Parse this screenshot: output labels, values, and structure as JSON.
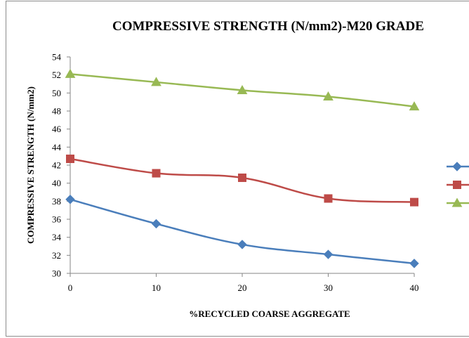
{
  "chart_data": {
    "type": "line",
    "title": "COMPRESSIVE  STRENGTH  (N/mm2)-M20 GRADE",
    "xlabel": "%RECYCLED COARSE AGGREGATE",
    "ylabel": "COMPRESSIVE STRENGTH (N/mm2)",
    "x": [
      0,
      10,
      20,
      30,
      40
    ],
    "ylim": [
      30,
      54
    ],
    "yticks": [
      "30",
      "32",
      "34",
      "36",
      "38",
      "40",
      "42",
      "44",
      "46",
      "48",
      "50",
      "52",
      "54"
    ],
    "xticks": [
      "0",
      "10",
      "20",
      "30",
      "40"
    ],
    "grid": false,
    "legend_position": "right",
    "series": [
      {
        "values": [
          38.2,
          35.5,
          33.2,
          32.1,
          31.1
        ],
        "color": "#4a7ebb",
        "marker": "diamond"
      },
      {
        "values": [
          42.7,
          41.1,
          40.6,
          38.3,
          37.9
        ],
        "color": "#be4b48",
        "marker": "square"
      },
      {
        "values": [
          52.1,
          51.2,
          50.3,
          49.6,
          48.5
        ],
        "color": "#98b954",
        "marker": "triangle"
      }
    ]
  }
}
